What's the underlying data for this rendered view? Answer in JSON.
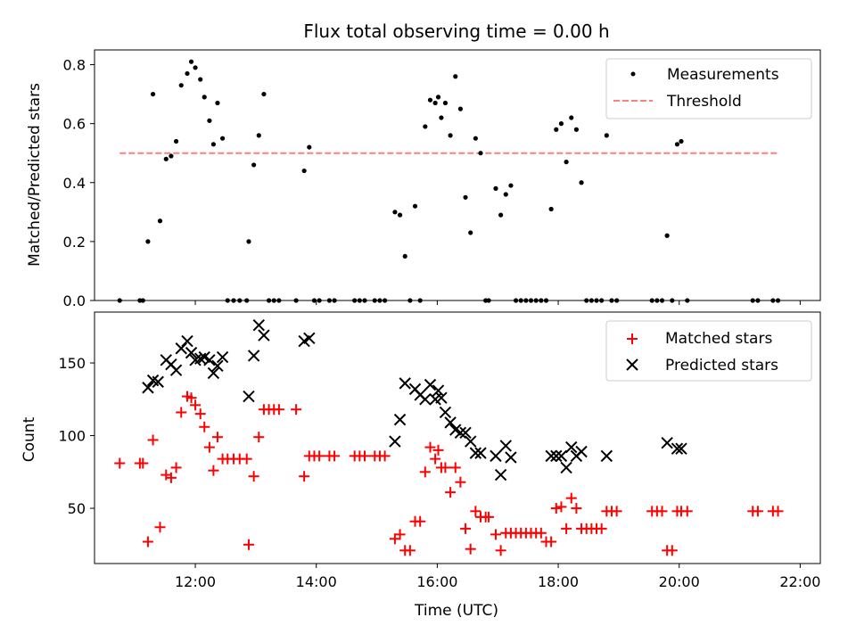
{
  "chart_data": [
    {
      "type": "scatter",
      "title": "Flux total observing time = 0.00 h",
      "xlabel": "",
      "ylabel": "Matched/Predicted stars",
      "xlim": [
        "10:20",
        "22:20"
      ],
      "ylim": [
        0.0,
        0.85
      ],
      "yticks": [
        0.0,
        0.2,
        0.4,
        0.6,
        0.8
      ],
      "ytick_labels": [
        "0.0",
        "0.2",
        "0.4",
        "0.6",
        "0.8"
      ],
      "legend_position": "top-right",
      "series": [
        {
          "name": "Measurements",
          "marker": "dot",
          "color": "#000000",
          "points": [
            [
              "10:45",
              0.0
            ],
            [
              "11:05",
              0.0
            ],
            [
              "11:08",
              0.0
            ],
            [
              "11:13",
              0.2
            ],
            [
              "11:18",
              0.7
            ],
            [
              "11:25",
              0.27
            ],
            [
              "11:31",
              0.48
            ],
            [
              "11:36",
              0.49
            ],
            [
              "11:41",
              0.54
            ],
            [
              "11:46",
              0.73
            ],
            [
              "11:52",
              0.77
            ],
            [
              "11:56",
              0.81
            ],
            [
              "12:00",
              0.79
            ],
            [
              "12:05",
              0.75
            ],
            [
              "12:09",
              0.69
            ],
            [
              "12:14",
              0.61
            ],
            [
              "12:18",
              0.53
            ],
            [
              "12:22",
              0.67
            ],
            [
              "12:27",
              0.55
            ],
            [
              "12:32",
              0.0
            ],
            [
              "12:38",
              0.0
            ],
            [
              "12:44",
              0.0
            ],
            [
              "12:51",
              0.0
            ],
            [
              "12:53",
              0.2
            ],
            [
              "12:58",
              0.46
            ],
            [
              "13:03",
              0.56
            ],
            [
              "13:08",
              0.7
            ],
            [
              "13:13",
              0.0
            ],
            [
              "13:18",
              0.0
            ],
            [
              "13:23",
              0.0
            ],
            [
              "13:40",
              0.0
            ],
            [
              "13:48",
              0.44
            ],
            [
              "13:53",
              0.52
            ],
            [
              "13:58",
              0.0
            ],
            [
              "14:03",
              0.0
            ],
            [
              "14:13",
              0.0
            ],
            [
              "14:18",
              0.0
            ],
            [
              "14:38",
              0.0
            ],
            [
              "14:43",
              0.0
            ],
            [
              "14:48",
              0.0
            ],
            [
              "14:58",
              0.0
            ],
            [
              "15:03",
              0.0
            ],
            [
              "15:08",
              0.0
            ],
            [
              "15:18",
              0.3
            ],
            [
              "15:23",
              0.29
            ],
            [
              "15:28",
              0.15
            ],
            [
              "15:33",
              0.0
            ],
            [
              "15:38",
              0.32
            ],
            [
              "15:43",
              0.0
            ],
            [
              "15:48",
              0.59
            ],
            [
              "15:53",
              0.68
            ],
            [
              "15:58",
              0.67
            ],
            [
              "16:01",
              0.69
            ],
            [
              "16:04",
              0.62
            ],
            [
              "16:08",
              0.67
            ],
            [
              "16:13",
              0.56
            ],
            [
              "16:18",
              0.76
            ],
            [
              "16:23",
              0.65
            ],
            [
              "16:28",
              0.35
            ],
            [
              "16:33",
              0.23
            ],
            [
              "16:38",
              0.55
            ],
            [
              "16:43",
              0.5
            ],
            [
              "16:48",
              0.0
            ],
            [
              "16:51",
              0.0
            ],
            [
              "16:58",
              0.38
            ],
            [
              "17:03",
              0.29
            ],
            [
              "17:08",
              0.36
            ],
            [
              "17:13",
              0.39
            ],
            [
              "17:18",
              0.0
            ],
            [
              "17:23",
              0.0
            ],
            [
              "17:28",
              0.0
            ],
            [
              "17:33",
              0.0
            ],
            [
              "17:38",
              0.0
            ],
            [
              "17:43",
              0.0
            ],
            [
              "17:48",
              0.0
            ],
            [
              "17:53",
              0.31
            ],
            [
              "17:58",
              0.58
            ],
            [
              "18:03",
              0.6
            ],
            [
              "18:08",
              0.47
            ],
            [
              "18:13",
              0.62
            ],
            [
              "18:18",
              0.58
            ],
            [
              "18:23",
              0.4
            ],
            [
              "18:28",
              0.0
            ],
            [
              "18:33",
              0.0
            ],
            [
              "18:38",
              0.0
            ],
            [
              "18:43",
              0.0
            ],
            [
              "18:48",
              0.56
            ],
            [
              "18:53",
              0.0
            ],
            [
              "18:58",
              0.0
            ],
            [
              "19:33",
              0.0
            ],
            [
              "19:38",
              0.0
            ],
            [
              "19:43",
              0.0
            ],
            [
              "19:48",
              0.22
            ],
            [
              "19:53",
              0.0
            ],
            [
              "19:58",
              0.53
            ],
            [
              "20:02",
              0.54
            ],
            [
              "20:08",
              0.0
            ],
            [
              "21:13",
              0.0
            ],
            [
              "21:18",
              0.0
            ],
            [
              "21:33",
              0.0
            ],
            [
              "21:38",
              0.0
            ]
          ]
        },
        {
          "name": "Threshold",
          "marker": "dashed-line",
          "color": "#ff7f7f",
          "points": [
            [
              "10:45",
              0.5
            ],
            [
              "21:38",
              0.5
            ]
          ]
        }
      ]
    },
    {
      "type": "scatter",
      "title": "",
      "xlabel": "Time (UTC)",
      "ylabel": "Count",
      "xlim": [
        "10:20",
        "22:20"
      ],
      "ylim": [
        12,
        185
      ],
      "yticks": [
        50,
        100,
        150
      ],
      "ytick_labels": [
        "50",
        "100",
        "150"
      ],
      "xticks": [
        "12:00",
        "14:00",
        "16:00",
        "18:00",
        "20:00",
        "22:00"
      ],
      "xtick_labels": [
        "12:00",
        "14:00",
        "16:00",
        "18:00",
        "20:00",
        "22:00"
      ],
      "legend_position": "top-right",
      "series": [
        {
          "name": "Matched stars",
          "marker": "plus",
          "color": "#ff0000",
          "points": [
            [
              "10:45",
              81
            ],
            [
              "11:05",
              81
            ],
            [
              "11:08",
              81
            ],
            [
              "11:13",
              27
            ],
            [
              "11:18",
              97
            ],
            [
              "11:25",
              37
            ],
            [
              "11:31",
              73
            ],
            [
              "11:36",
              71
            ],
            [
              "11:41",
              78
            ],
            [
              "11:46",
              116
            ],
            [
              "11:52",
              127
            ],
            [
              "11:56",
              126
            ],
            [
              "12:00",
              121
            ],
            [
              "12:05",
              115
            ],
            [
              "12:09",
              106
            ],
            [
              "12:14",
              92
            ],
            [
              "12:18",
              76
            ],
            [
              "12:22",
              99
            ],
            [
              "12:27",
              84
            ],
            [
              "12:32",
              84
            ],
            [
              "12:38",
              84
            ],
            [
              "12:44",
              84
            ],
            [
              "12:51",
              84
            ],
            [
              "12:53",
              25
            ],
            [
              "12:58",
              72
            ],
            [
              "13:03",
              99
            ],
            [
              "13:08",
              118
            ],
            [
              "13:13",
              118
            ],
            [
              "13:18",
              118
            ],
            [
              "13:23",
              118
            ],
            [
              "13:40",
              118
            ],
            [
              "13:48",
              72
            ],
            [
              "13:53",
              86
            ],
            [
              "13:58",
              86
            ],
            [
              "14:03",
              86
            ],
            [
              "14:13",
              86
            ],
            [
              "14:18",
              86
            ],
            [
              "14:38",
              86
            ],
            [
              "14:43",
              86
            ],
            [
              "14:48",
              86
            ],
            [
              "14:58",
              86
            ],
            [
              "15:03",
              86
            ],
            [
              "15:08",
              86
            ],
            [
              "15:18",
              29
            ],
            [
              "15:23",
              32
            ],
            [
              "15:28",
              21
            ],
            [
              "15:33",
              21
            ],
            [
              "15:38",
              41
            ],
            [
              "15:43",
              41
            ],
            [
              "15:48",
              75
            ],
            [
              "15:53",
              92
            ],
            [
              "15:58",
              84
            ],
            [
              "16:01",
              90
            ],
            [
              "16:04",
              78
            ],
            [
              "16:08",
              78
            ],
            [
              "16:13",
              61
            ],
            [
              "16:18",
              78
            ],
            [
              "16:23",
              68
            ],
            [
              "16:28",
              36
            ],
            [
              "16:33",
              22
            ],
            [
              "16:38",
              48
            ],
            [
              "16:43",
              44
            ],
            [
              "16:48",
              44
            ],
            [
              "16:51",
              44
            ],
            [
              "16:58",
              32
            ],
            [
              "17:03",
              21
            ],
            [
              "17:08",
              33
            ],
            [
              "17:13",
              33
            ],
            [
              "17:18",
              33
            ],
            [
              "17:23",
              33
            ],
            [
              "17:28",
              33
            ],
            [
              "17:33",
              33
            ],
            [
              "17:38",
              33
            ],
            [
              "17:43",
              33
            ],
            [
              "17:48",
              27
            ],
            [
              "17:53",
              27
            ],
            [
              "17:58",
              50
            ],
            [
              "18:03",
              51
            ],
            [
              "18:08",
              36
            ],
            [
              "18:13",
              57
            ],
            [
              "18:18",
              50
            ],
            [
              "18:23",
              36
            ],
            [
              "18:28",
              36
            ],
            [
              "18:33",
              36
            ],
            [
              "18:38",
              36
            ],
            [
              "18:43",
              36
            ],
            [
              "18:48",
              48
            ],
            [
              "18:53",
              48
            ],
            [
              "18:58",
              48
            ],
            [
              "19:33",
              48
            ],
            [
              "19:38",
              48
            ],
            [
              "19:43",
              48
            ],
            [
              "19:48",
              21
            ],
            [
              "19:53",
              21
            ],
            [
              "19:58",
              48
            ],
            [
              "20:02",
              48
            ],
            [
              "20:08",
              48
            ],
            [
              "21:13",
              48
            ],
            [
              "21:18",
              48
            ],
            [
              "21:33",
              48
            ],
            [
              "21:38",
              48
            ]
          ]
        },
        {
          "name": "Predicted stars",
          "marker": "x",
          "color": "#000000",
          "points": [
            [
              "11:13",
              133
            ],
            [
              "11:18",
              138
            ],
            [
              "11:23",
              137
            ],
            [
              "11:31",
              152
            ],
            [
              "11:36",
              149
            ],
            [
              "11:41",
              145
            ],
            [
              "11:46",
              160
            ],
            [
              "11:52",
              165
            ],
            [
              "11:56",
              157
            ],
            [
              "12:00",
              152
            ],
            [
              "12:05",
              153
            ],
            [
              "12:09",
              154
            ],
            [
              "12:14",
              152
            ],
            [
              "12:18",
              143
            ],
            [
              "12:22",
              148
            ],
            [
              "12:27",
              154
            ],
            [
              "12:53",
              127
            ],
            [
              "12:58",
              155
            ],
            [
              "13:03",
              176
            ],
            [
              "13:08",
              169
            ],
            [
              "13:48",
              165
            ],
            [
              "13:53",
              167
            ],
            [
              "15:18",
              96
            ],
            [
              "15:23",
              111
            ],
            [
              "15:28",
              136
            ],
            [
              "15:38",
              132
            ],
            [
              "15:43",
              128
            ],
            [
              "15:48",
              125
            ],
            [
              "15:53",
              135
            ],
            [
              "15:58",
              125
            ],
            [
              "16:01",
              131
            ],
            [
              "16:04",
              126
            ],
            [
              "16:08",
              116
            ],
            [
              "16:13",
              109
            ],
            [
              "16:18",
              104
            ],
            [
              "16:23",
              102
            ],
            [
              "16:28",
              102
            ],
            [
              "16:33",
              96
            ],
            [
              "16:38",
              88
            ],
            [
              "16:43",
              88
            ],
            [
              "16:58",
              86
            ],
            [
              "17:03",
              73
            ],
            [
              "17:08",
              93
            ],
            [
              "17:13",
              85
            ],
            [
              "17:53",
              86
            ],
            [
              "17:58",
              86
            ],
            [
              "18:03",
              86
            ],
            [
              "18:08",
              78
            ],
            [
              "18:13",
              92
            ],
            [
              "18:18",
              86
            ],
            [
              "18:23",
              89
            ],
            [
              "18:48",
              86
            ],
            [
              "19:48",
              95
            ],
            [
              "19:58",
              91
            ],
            [
              "20:02",
              91
            ]
          ]
        }
      ]
    }
  ]
}
